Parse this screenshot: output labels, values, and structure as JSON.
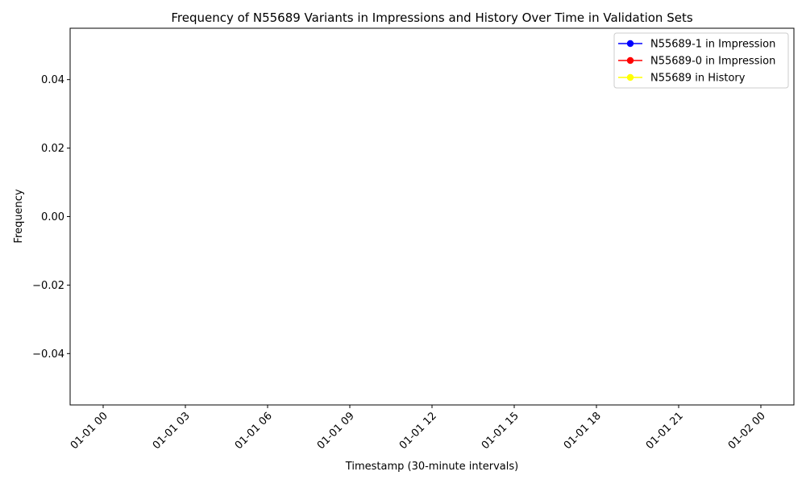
{
  "chart_data": {
    "type": "line",
    "title": "Frequency of N55689 Variants in Impressions and History Over Time in Validation Sets",
    "xlabel": "Timestamp (30-minute intervals)",
    "ylabel": "Frequency",
    "ylim": [
      -0.055,
      0.055
    ],
    "y_ticks": [
      -0.04,
      -0.02,
      0.0,
      0.02,
      0.04
    ],
    "y_tick_labels": [
      "−0.04",
      "−0.02",
      "0.00",
      "0.02",
      "0.04"
    ],
    "x_ticks": [
      "01-01 00",
      "01-01 03",
      "01-01 06",
      "01-01 09",
      "01-01 12",
      "01-01 15",
      "01-01 18",
      "01-01 21",
      "01-02 00"
    ],
    "grid": false,
    "legend_position": "top-right",
    "series": [
      {
        "name": "N55689-1 in Impression",
        "color": "#0000ff",
        "values": []
      },
      {
        "name": "N55689-0 in Impression",
        "color": "#ff0000",
        "values": []
      },
      {
        "name": "N55689 in History",
        "color": "#ffff00",
        "values": []
      }
    ]
  }
}
